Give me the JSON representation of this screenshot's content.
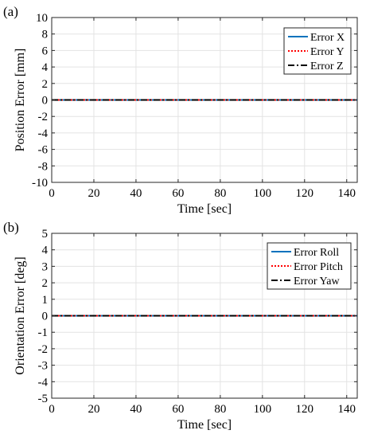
{
  "chart_data": [
    {
      "panel_label": "(a)",
      "type": "line",
      "xlabel": "Time [sec]",
      "ylabel": "Position Error [mm]",
      "xlim": [
        0,
        145
      ],
      "ylim": [
        -10,
        10
      ],
      "xticks": [
        0,
        20,
        40,
        60,
        80,
        100,
        120,
        140
      ],
      "yticks": [
        10,
        8,
        6,
        4,
        2,
        0,
        -2,
        -4,
        -6,
        -8,
        -10
      ],
      "grid": true,
      "legend_position": "top-right",
      "series": [
        {
          "name": "Error X",
          "color": "#0072BD",
          "style": "solid",
          "x": [
            0,
            145
          ],
          "y": [
            0,
            0
          ]
        },
        {
          "name": "Error Y",
          "color": "#FF0000",
          "style": "dotted",
          "x": [
            0,
            145
          ],
          "y": [
            0,
            0
          ]
        },
        {
          "name": "Error Z",
          "color": "#000000",
          "style": "dashdot",
          "x": [
            0,
            145
          ],
          "y": [
            0,
            0
          ]
        }
      ]
    },
    {
      "panel_label": "(b)",
      "type": "line",
      "xlabel": "Time [sec]",
      "ylabel": "Orientation Error [deg]",
      "xlim": [
        0,
        145
      ],
      "ylim": [
        -5,
        5
      ],
      "xticks": [
        0,
        20,
        40,
        60,
        80,
        100,
        120,
        140
      ],
      "yticks": [
        5,
        4,
        3,
        2,
        1,
        0,
        -1,
        -2,
        -3,
        -4,
        -5
      ],
      "grid": true,
      "legend_position": "top-right",
      "series": [
        {
          "name": "Error Roll",
          "color": "#0072BD",
          "style": "solid",
          "x": [
            0,
            145
          ],
          "y": [
            0,
            0
          ]
        },
        {
          "name": "Error Pitch",
          "color": "#FF0000",
          "style": "dotted",
          "x": [
            0,
            145
          ],
          "y": [
            0,
            0
          ]
        },
        {
          "name": "Error Yaw",
          "color": "#000000",
          "style": "dashdot",
          "x": [
            0,
            145
          ],
          "y": [
            0,
            0
          ]
        }
      ]
    }
  ]
}
